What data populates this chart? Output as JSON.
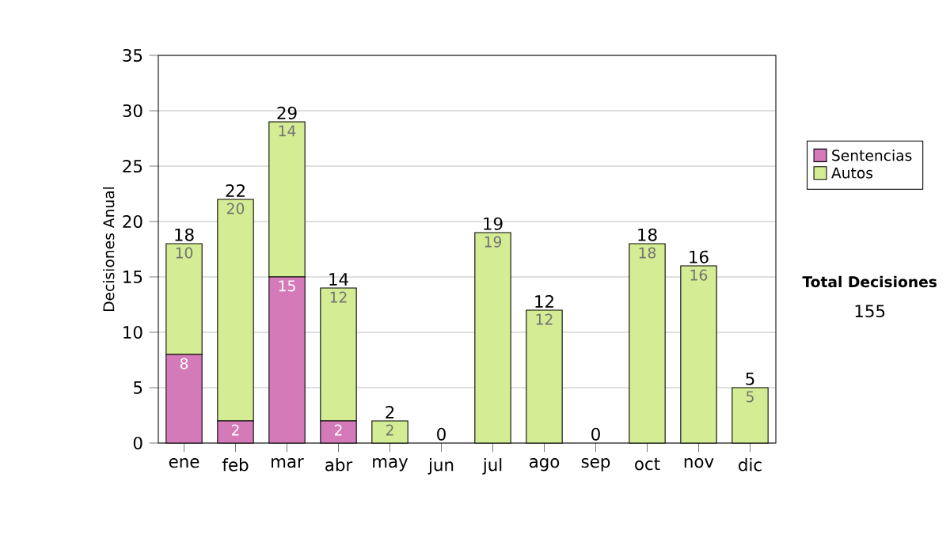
{
  "chart_data": {
    "type": "bar",
    "stacked": true,
    "ylabel": "Decisiones Anual",
    "categories": [
      "ene",
      "feb",
      "mar",
      "abr",
      "may",
      "jun",
      "jul",
      "ago",
      "sep",
      "oct",
      "nov",
      "dic"
    ],
    "series": [
      {
        "name": "Sentencias",
        "color": "#d47ab8",
        "values": [
          8,
          2,
          15,
          2,
          0,
          0,
          0,
          0,
          0,
          0,
          0,
          0
        ],
        "value_labels": [
          "8",
          "2",
          "15",
          "2",
          null,
          null,
          null,
          null,
          null,
          null,
          null,
          null
        ]
      },
      {
        "name": "Autos",
        "color": "#d4ec94",
        "values": [
          10,
          20,
          14,
          12,
          2,
          0,
          19,
          12,
          0,
          18,
          16,
          5
        ],
        "value_labels": [
          "10",
          "20",
          "14",
          "12",
          "2",
          null,
          "19",
          "12",
          null,
          "18",
          "16",
          "5"
        ]
      }
    ],
    "totals": [
      "18",
      "22",
      "29",
      "14",
      "2",
      "0",
      "19",
      "12",
      "0",
      "18",
      "16",
      "5"
    ],
    "ylim": [
      0,
      35
    ],
    "yticks": [
      0,
      5,
      10,
      15,
      20,
      25,
      30,
      35
    ],
    "grid": "y",
    "legend": "right",
    "annotations": [
      "Total Decisiones",
      "155"
    ]
  }
}
